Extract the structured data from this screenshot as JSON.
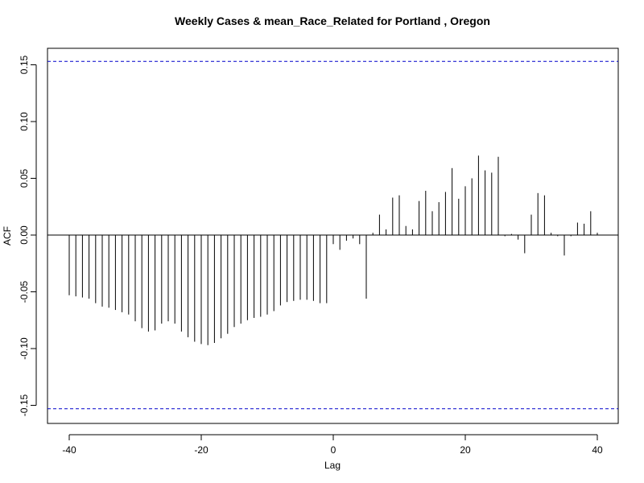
{
  "chart_data": {
    "type": "bar",
    "title": "Weekly Cases & mean_Race_Related for Portland , Oregon",
    "xlabel": "Lag",
    "ylabel": "ACF",
    "xlim": [
      -40,
      40
    ],
    "ylim": [
      -0.15,
      0.15
    ],
    "x_ticks": [
      -40,
      -20,
      0,
      20,
      40
    ],
    "y_ticks": [
      -0.15,
      -0.1,
      -0.05,
      0.0,
      0.05,
      0.1,
      0.15
    ],
    "x_tick_labels": [
      "-40",
      "-20",
      "0",
      "20",
      "40"
    ],
    "y_tick_labels": [
      "-0.15",
      "-0.10",
      "-0.05",
      "0.00",
      "0.05",
      "0.10",
      "0.15"
    ],
    "confidence_bound": 0.153,
    "confidence_color": "#0000cc",
    "lags": [
      -40,
      -39,
      -38,
      -37,
      -36,
      -35,
      -34,
      -33,
      -32,
      -31,
      -30,
      -29,
      -28,
      -27,
      -26,
      -25,
      -24,
      -23,
      -22,
      -21,
      -20,
      -19,
      -18,
      -17,
      -16,
      -15,
      -14,
      -13,
      -12,
      -11,
      -10,
      -9,
      -8,
      -7,
      -6,
      -5,
      -4,
      -3,
      -2,
      -1,
      0,
      1,
      2,
      3,
      4,
      5,
      6,
      7,
      8,
      9,
      10,
      11,
      12,
      13,
      14,
      15,
      16,
      17,
      18,
      19,
      20,
      21,
      22,
      23,
      24,
      25,
      26,
      27,
      28,
      29,
      30,
      31,
      32,
      33,
      34,
      35,
      36,
      37,
      38,
      39,
      40
    ],
    "values": [
      -0.053,
      -0.054,
      -0.055,
      -0.056,
      -0.06,
      -0.063,
      -0.064,
      -0.066,
      -0.068,
      -0.07,
      -0.076,
      -0.082,
      -0.085,
      -0.084,
      -0.078,
      -0.076,
      -0.078,
      -0.085,
      -0.09,
      -0.094,
      -0.096,
      -0.097,
      -0.095,
      -0.091,
      -0.087,
      -0.081,
      -0.078,
      -0.075,
      -0.073,
      -0.072,
      -0.07,
      -0.067,
      -0.062,
      -0.059,
      -0.058,
      -0.057,
      -0.057,
      -0.058,
      -0.06,
      -0.06,
      -0.008,
      -0.013,
      -0.005,
      -0.003,
      -0.008,
      -0.056,
      0.002,
      0.018,
      0.005,
      0.033,
      0.035,
      0.008,
      0.005,
      0.03,
      0.039,
      0.021,
      0.029,
      0.038,
      0.059,
      0.032,
      0.043,
      0.05,
      0.07,
      0.057,
      0.055,
      0.069,
      -0.001,
      0.001,
      -0.004,
      -0.016,
      0.018,
      0.037,
      0.035,
      0.002,
      -0.001,
      -0.018,
      -0.001,
      0.011,
      0.01,
      0.021,
      0.002
    ]
  }
}
